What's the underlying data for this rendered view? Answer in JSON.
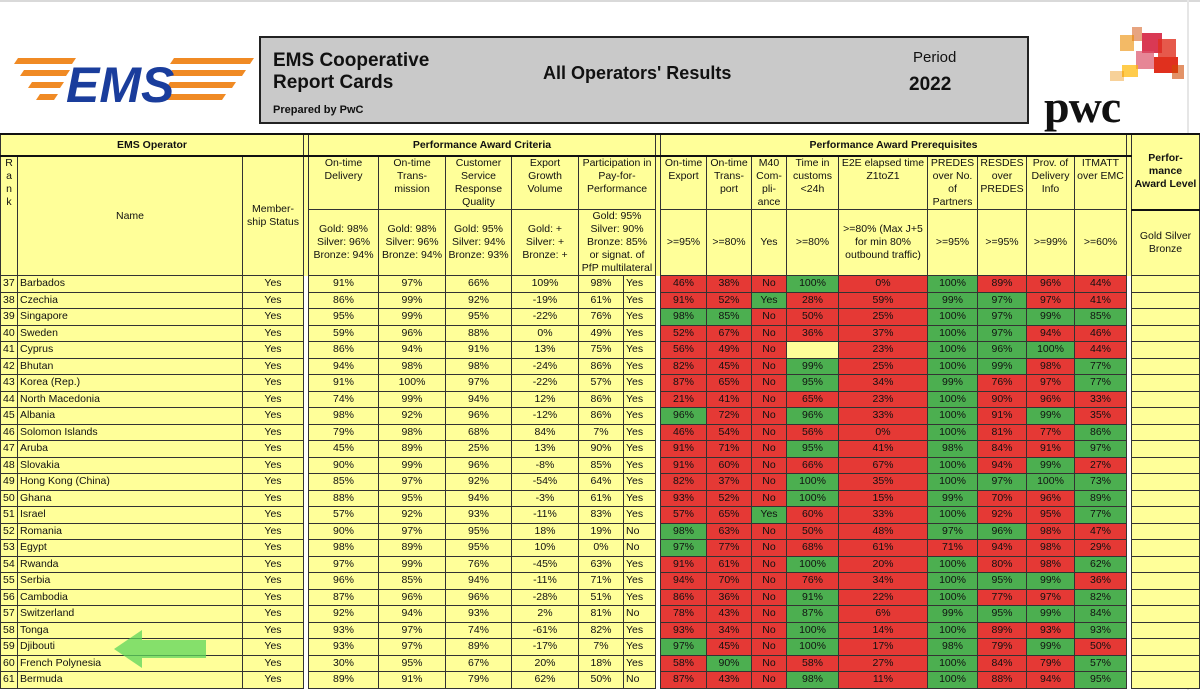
{
  "header": {
    "title": "EMS Cooperative Report Cards",
    "prepared_by": "Prepared by PwC",
    "center_title": "All Operators' Results",
    "period_label": "Period",
    "period_value": "2022",
    "ems_logo_text": "EMS",
    "pwc_logo_text": "pwc"
  },
  "sections": {
    "operator": "EMS Operator",
    "criteria": "Performance Award Criteria",
    "prerequisites": "Performance Award Prerequisites",
    "level": "Perfor-mance Award Level"
  },
  "columns": {
    "rank": "R a n k",
    "name": "Name",
    "membership": "Member-ship Status",
    "ontime_delivery": "On-time Delivery",
    "ontime_transmission": "On-time Trans-mission",
    "customer_service": "Customer Service Response Quality",
    "export_growth": "Export Growth Volume",
    "pfp": "Participation in Pay-for-Performance",
    "ontime_export": "On-time Export",
    "ontime_transport": "On-time Trans-port",
    "m40": "M40 Com-pli-ance",
    "customs": "Time in customs <24h",
    "e2e": "E2E elapsed time Z1toZ1",
    "predes": "PREDES over No. of Partners",
    "resdes": "RESDES over PREDES",
    "delivery_info": "Prov. of Delivery Info",
    "itmatt": "ITMATT over EMC"
  },
  "thresholds": {
    "ontime_delivery": "Gold: 98% Silver: 96% Bronze: 94%",
    "ontime_transmission": "Gold: 98% Silver: 96% Bronze: 94%",
    "customer_service": "Gold: 95% Silver: 94% Bronze: 93%",
    "export_growth": "Gold: + Silver: + Bronze: +",
    "pfp": "Gold: 95% Silver: 90% Bronze: 85% or signat. of PfP multilateral",
    "ontime_export": ">=95%",
    "ontime_transport": ">=80%",
    "m40": "Yes",
    "customs": ">=80%",
    "e2e": ">=80% (Max J+5 for min 80% outbound traffic)",
    "predes": ">=95%",
    "resdes": ">=95%",
    "delivery_info": ">=99%",
    "itmatt": ">=60%",
    "level": "Gold Silver Bronze"
  },
  "status_colors": {
    "pass": "#4caf50",
    "fail": "#e53935",
    "neutral": "#ffff99"
  },
  "rows": [
    {
      "rank": "37",
      "name": "Barbados",
      "member": "Yes",
      "d": "91%",
      "t": "97%",
      "c": "66%",
      "e": "109%",
      "p": "98%",
      "py": "Yes",
      "oe": [
        "46%",
        "R"
      ],
      "ot": [
        "38%",
        "R"
      ],
      "m": [
        "No",
        "R"
      ],
      "cu": [
        "100%",
        "G"
      ],
      "e2": [
        "0%",
        "R"
      ],
      "pr": [
        "100%",
        "G"
      ],
      "rs": [
        "89%",
        "R"
      ],
      "di": [
        "96%",
        "R"
      ],
      "it": [
        "44%",
        "R"
      ]
    },
    {
      "rank": "38",
      "name": "Czechia",
      "member": "Yes",
      "d": "86%",
      "t": "99%",
      "c": "92%",
      "e": "-19%",
      "p": "61%",
      "py": "Yes",
      "oe": [
        "91%",
        "R"
      ],
      "ot": [
        "52%",
        "R"
      ],
      "m": [
        "Yes",
        "G"
      ],
      "cu": [
        "28%",
        "R"
      ],
      "e2": [
        "59%",
        "R"
      ],
      "pr": [
        "99%",
        "G"
      ],
      "rs": [
        "97%",
        "G"
      ],
      "di": [
        "97%",
        "R"
      ],
      "it": [
        "41%",
        "R"
      ]
    },
    {
      "rank": "39",
      "name": "Singapore",
      "member": "Yes",
      "d": "95%",
      "t": "99%",
      "c": "95%",
      "e": "-22%",
      "p": "76%",
      "py": "Yes",
      "oe": [
        "98%",
        "G"
      ],
      "ot": [
        "85%",
        "G"
      ],
      "m": [
        "No",
        "R"
      ],
      "cu": [
        "50%",
        "R"
      ],
      "e2": [
        "25%",
        "R"
      ],
      "pr": [
        "100%",
        "G"
      ],
      "rs": [
        "97%",
        "G"
      ],
      "di": [
        "99%",
        "G"
      ],
      "it": [
        "85%",
        "G"
      ]
    },
    {
      "rank": "40",
      "name": "Sweden",
      "member": "Yes",
      "d": "59%",
      "t": "96%",
      "c": "88%",
      "e": "0%",
      "p": "49%",
      "py": "Yes",
      "oe": [
        "52%",
        "R"
      ],
      "ot": [
        "67%",
        "R"
      ],
      "m": [
        "No",
        "R"
      ],
      "cu": [
        "36%",
        "R"
      ],
      "e2": [
        "37%",
        "R"
      ],
      "pr": [
        "100%",
        "G"
      ],
      "rs": [
        "97%",
        "G"
      ],
      "di": [
        "94%",
        "R"
      ],
      "it": [
        "46%",
        "R"
      ]
    },
    {
      "rank": "41",
      "name": "Cyprus",
      "member": "Yes",
      "d": "86%",
      "t": "94%",
      "c": "91%",
      "e": "13%",
      "p": "75%",
      "py": "Yes",
      "oe": [
        "56%",
        "R"
      ],
      "ot": [
        "49%",
        "R"
      ],
      "m": [
        "No",
        "R"
      ],
      "cu": [
        "",
        ""
      ],
      "e2": [
        "23%",
        "R"
      ],
      "pr": [
        "100%",
        "G"
      ],
      "rs": [
        "96%",
        "G"
      ],
      "di": [
        "100%",
        "G"
      ],
      "it": [
        "44%",
        "R"
      ]
    },
    {
      "rank": "42",
      "name": "Bhutan",
      "member": "Yes",
      "d": "94%",
      "t": "98%",
      "c": "98%",
      "e": "-24%",
      "p": "86%",
      "py": "Yes",
      "oe": [
        "82%",
        "R"
      ],
      "ot": [
        "45%",
        "R"
      ],
      "m": [
        "No",
        "R"
      ],
      "cu": [
        "99%",
        "G"
      ],
      "e2": [
        "25%",
        "R"
      ],
      "pr": [
        "100%",
        "G"
      ],
      "rs": [
        "99%",
        "G"
      ],
      "di": [
        "98%",
        "R"
      ],
      "it": [
        "77%",
        "G"
      ]
    },
    {
      "rank": "43",
      "name": "Korea (Rep.)",
      "member": "Yes",
      "d": "91%",
      "t": "100%",
      "c": "97%",
      "e": "-22%",
      "p": "57%",
      "py": "Yes",
      "oe": [
        "87%",
        "R"
      ],
      "ot": [
        "65%",
        "R"
      ],
      "m": [
        "No",
        "R"
      ],
      "cu": [
        "95%",
        "G"
      ],
      "e2": [
        "34%",
        "R"
      ],
      "pr": [
        "99%",
        "G"
      ],
      "rs": [
        "76%",
        "R"
      ],
      "di": [
        "97%",
        "R"
      ],
      "it": [
        "77%",
        "G"
      ]
    },
    {
      "rank": "44",
      "name": "North Macedonia",
      "member": "Yes",
      "d": "74%",
      "t": "99%",
      "c": "94%",
      "e": "12%",
      "p": "86%",
      "py": "Yes",
      "oe": [
        "21%",
        "R"
      ],
      "ot": [
        "41%",
        "R"
      ],
      "m": [
        "No",
        "R"
      ],
      "cu": [
        "65%",
        "R"
      ],
      "e2": [
        "23%",
        "R"
      ],
      "pr": [
        "100%",
        "G"
      ],
      "rs": [
        "90%",
        "R"
      ],
      "di": [
        "96%",
        "R"
      ],
      "it": [
        "33%",
        "R"
      ]
    },
    {
      "rank": "45",
      "name": "Albania",
      "member": "Yes",
      "d": "98%",
      "t": "92%",
      "c": "96%",
      "e": "-12%",
      "p": "86%",
      "py": "Yes",
      "oe": [
        "96%",
        "G"
      ],
      "ot": [
        "72%",
        "R"
      ],
      "m": [
        "No",
        "R"
      ],
      "cu": [
        "96%",
        "G"
      ],
      "e2": [
        "33%",
        "R"
      ],
      "pr": [
        "100%",
        "G"
      ],
      "rs": [
        "91%",
        "R"
      ],
      "di": [
        "99%",
        "G"
      ],
      "it": [
        "35%",
        "R"
      ]
    },
    {
      "rank": "46",
      "name": "Solomon Islands",
      "member": "Yes",
      "d": "79%",
      "t": "98%",
      "c": "68%",
      "e": "84%",
      "p": "7%",
      "py": "Yes",
      "oe": [
        "46%",
        "R"
      ],
      "ot": [
        "54%",
        "R"
      ],
      "m": [
        "No",
        "R"
      ],
      "cu": [
        "56%",
        "R"
      ],
      "e2": [
        "0%",
        "R"
      ],
      "pr": [
        "100%",
        "G"
      ],
      "rs": [
        "81%",
        "R"
      ],
      "di": [
        "77%",
        "R"
      ],
      "it": [
        "86%",
        "G"
      ]
    },
    {
      "rank": "47",
      "name": "Aruba",
      "member": "Yes",
      "d": "45%",
      "t": "89%",
      "c": "25%",
      "e": "13%",
      "p": "90%",
      "py": "Yes",
      "oe": [
        "91%",
        "R"
      ],
      "ot": [
        "71%",
        "R"
      ],
      "m": [
        "No",
        "R"
      ],
      "cu": [
        "95%",
        "G"
      ],
      "e2": [
        "41%",
        "R"
      ],
      "pr": [
        "98%",
        "G"
      ],
      "rs": [
        "84%",
        "R"
      ],
      "di": [
        "91%",
        "R"
      ],
      "it": [
        "97%",
        "G"
      ]
    },
    {
      "rank": "48",
      "name": "Slovakia",
      "member": "Yes",
      "d": "90%",
      "t": "99%",
      "c": "96%",
      "e": "-8%",
      "p": "85%",
      "py": "Yes",
      "oe": [
        "91%",
        "R"
      ],
      "ot": [
        "60%",
        "R"
      ],
      "m": [
        "No",
        "R"
      ],
      "cu": [
        "66%",
        "R"
      ],
      "e2": [
        "67%",
        "R"
      ],
      "pr": [
        "100%",
        "G"
      ],
      "rs": [
        "94%",
        "R"
      ],
      "di": [
        "99%",
        "G"
      ],
      "it": [
        "27%",
        "R"
      ]
    },
    {
      "rank": "49",
      "name": "Hong Kong (China)",
      "member": "Yes",
      "d": "85%",
      "t": "97%",
      "c": "92%",
      "e": "-54%",
      "p": "64%",
      "py": "Yes",
      "oe": [
        "82%",
        "R"
      ],
      "ot": [
        "37%",
        "R"
      ],
      "m": [
        "No",
        "R"
      ],
      "cu": [
        "100%",
        "G"
      ],
      "e2": [
        "35%",
        "R"
      ],
      "pr": [
        "100%",
        "G"
      ],
      "rs": [
        "97%",
        "G"
      ],
      "di": [
        "100%",
        "G"
      ],
      "it": [
        "73%",
        "G"
      ]
    },
    {
      "rank": "50",
      "name": "Ghana",
      "member": "Yes",
      "d": "88%",
      "t": "95%",
      "c": "94%",
      "e": "-3%",
      "p": "61%",
      "py": "Yes",
      "oe": [
        "93%",
        "R"
      ],
      "ot": [
        "52%",
        "R"
      ],
      "m": [
        "No",
        "R"
      ],
      "cu": [
        "100%",
        "G"
      ],
      "e2": [
        "15%",
        "R"
      ],
      "pr": [
        "99%",
        "G"
      ],
      "rs": [
        "70%",
        "R"
      ],
      "di": [
        "96%",
        "R"
      ],
      "it": [
        "89%",
        "G"
      ]
    },
    {
      "rank": "51",
      "name": "Israel",
      "member": "Yes",
      "d": "57%",
      "t": "92%",
      "c": "93%",
      "e": "-11%",
      "p": "83%",
      "py": "Yes",
      "oe": [
        "57%",
        "R"
      ],
      "ot": [
        "65%",
        "R"
      ],
      "m": [
        "Yes",
        "G"
      ],
      "cu": [
        "60%",
        "R"
      ],
      "e2": [
        "33%",
        "R"
      ],
      "pr": [
        "100%",
        "G"
      ],
      "rs": [
        "92%",
        "R"
      ],
      "di": [
        "95%",
        "R"
      ],
      "it": [
        "77%",
        "G"
      ]
    },
    {
      "rank": "52",
      "name": "Romania",
      "member": "Yes",
      "d": "90%",
      "t": "97%",
      "c": "95%",
      "e": "18%",
      "p": "19%",
      "py": "No",
      "oe": [
        "98%",
        "G"
      ],
      "ot": [
        "63%",
        "R"
      ],
      "m": [
        "No",
        "R"
      ],
      "cu": [
        "50%",
        "R"
      ],
      "e2": [
        "48%",
        "R"
      ],
      "pr": [
        "97%",
        "G"
      ],
      "rs": [
        "96%",
        "G"
      ],
      "di": [
        "98%",
        "R"
      ],
      "it": [
        "47%",
        "R"
      ]
    },
    {
      "rank": "53",
      "name": "Egypt",
      "member": "Yes",
      "d": "98%",
      "t": "89%",
      "c": "95%",
      "e": "10%",
      "p": "0%",
      "py": "No",
      "oe": [
        "97%",
        "G"
      ],
      "ot": [
        "77%",
        "R"
      ],
      "m": [
        "No",
        "R"
      ],
      "cu": [
        "68%",
        "R"
      ],
      "e2": [
        "61%",
        "R"
      ],
      "pr": [
        "71%",
        "R"
      ],
      "rs": [
        "94%",
        "R"
      ],
      "di": [
        "98%",
        "R"
      ],
      "it": [
        "29%",
        "R"
      ]
    },
    {
      "rank": "54",
      "name": "Rwanda",
      "member": "Yes",
      "d": "97%",
      "t": "99%",
      "c": "76%",
      "e": "-45%",
      "p": "63%",
      "py": "Yes",
      "oe": [
        "91%",
        "R"
      ],
      "ot": [
        "61%",
        "R"
      ],
      "m": [
        "No",
        "R"
      ],
      "cu": [
        "100%",
        "G"
      ],
      "e2": [
        "20%",
        "R"
      ],
      "pr": [
        "100%",
        "G"
      ],
      "rs": [
        "80%",
        "R"
      ],
      "di": [
        "98%",
        "R"
      ],
      "it": [
        "62%",
        "G"
      ]
    },
    {
      "rank": "55",
      "name": "Serbia",
      "member": "Yes",
      "d": "96%",
      "t": "85%",
      "c": "94%",
      "e": "-11%",
      "p": "71%",
      "py": "Yes",
      "oe": [
        "94%",
        "R"
      ],
      "ot": [
        "70%",
        "R"
      ],
      "m": [
        "No",
        "R"
      ],
      "cu": [
        "76%",
        "R"
      ],
      "e2": [
        "34%",
        "R"
      ],
      "pr": [
        "100%",
        "G"
      ],
      "rs": [
        "95%",
        "G"
      ],
      "di": [
        "99%",
        "G"
      ],
      "it": [
        "36%",
        "R"
      ]
    },
    {
      "rank": "56",
      "name": "Cambodia",
      "member": "Yes",
      "d": "87%",
      "t": "96%",
      "c": "96%",
      "e": "-28%",
      "p": "51%",
      "py": "Yes",
      "oe": [
        "86%",
        "R"
      ],
      "ot": [
        "36%",
        "R"
      ],
      "m": [
        "No",
        "R"
      ],
      "cu": [
        "91%",
        "G"
      ],
      "e2": [
        "22%",
        "R"
      ],
      "pr": [
        "100%",
        "G"
      ],
      "rs": [
        "77%",
        "R"
      ],
      "di": [
        "97%",
        "R"
      ],
      "it": [
        "82%",
        "G"
      ]
    },
    {
      "rank": "57",
      "name": "Switzerland",
      "member": "Yes",
      "d": "92%",
      "t": "94%",
      "c": "93%",
      "e": "2%",
      "p": "81%",
      "py": "No",
      "oe": [
        "78%",
        "R"
      ],
      "ot": [
        "43%",
        "R"
      ],
      "m": [
        "No",
        "R"
      ],
      "cu": [
        "87%",
        "G"
      ],
      "e2": [
        "6%",
        "R"
      ],
      "pr": [
        "99%",
        "G"
      ],
      "rs": [
        "95%",
        "G"
      ],
      "di": [
        "99%",
        "G"
      ],
      "it": [
        "84%",
        "G"
      ]
    },
    {
      "rank": "58",
      "name": "Tonga",
      "member": "Yes",
      "d": "93%",
      "t": "97%",
      "c": "74%",
      "e": "-61%",
      "p": "82%",
      "py": "Yes",
      "oe": [
        "93%",
        "R"
      ],
      "ot": [
        "34%",
        "R"
      ],
      "m": [
        "No",
        "R"
      ],
      "cu": [
        "100%",
        "G"
      ],
      "e2": [
        "14%",
        "R"
      ],
      "pr": [
        "100%",
        "G"
      ],
      "rs": [
        "89%",
        "R"
      ],
      "di": [
        "93%",
        "R"
      ],
      "it": [
        "93%",
        "G"
      ]
    },
    {
      "rank": "59",
      "name": "Djibouti",
      "member": "Yes",
      "d": "93%",
      "t": "97%",
      "c": "89%",
      "e": "-17%",
      "p": "7%",
      "py": "Yes",
      "oe": [
        "97%",
        "G"
      ],
      "ot": [
        "45%",
        "R"
      ],
      "m": [
        "No",
        "R"
      ],
      "cu": [
        "100%",
        "G"
      ],
      "e2": [
        "17%",
        "R"
      ],
      "pr": [
        "98%",
        "G"
      ],
      "rs": [
        "79%",
        "R"
      ],
      "di": [
        "99%",
        "G"
      ],
      "it": [
        "50%",
        "R"
      ]
    },
    {
      "rank": "60",
      "name": "French Polynesia",
      "member": "Yes",
      "d": "30%",
      "t": "95%",
      "c": "67%",
      "e": "20%",
      "p": "18%",
      "py": "Yes",
      "oe": [
        "58%",
        "R"
      ],
      "ot": [
        "90%",
        "G"
      ],
      "m": [
        "No",
        "R"
      ],
      "cu": [
        "58%",
        "R"
      ],
      "e2": [
        "27%",
        "R"
      ],
      "pr": [
        "100%",
        "G"
      ],
      "rs": [
        "84%",
        "R"
      ],
      "di": [
        "79%",
        "R"
      ],
      "it": [
        "57%",
        "G"
      ]
    },
    {
      "rank": "61",
      "name": "Bermuda",
      "member": "Yes",
      "d": "89%",
      "t": "91%",
      "c": "79%",
      "e": "62%",
      "p": "50%",
      "py": "No",
      "oe": [
        "87%",
        "R"
      ],
      "ot": [
        "43%",
        "R"
      ],
      "m": [
        "No",
        "R"
      ],
      "cu": [
        "98%",
        "G"
      ],
      "e2": [
        "11%",
        "R"
      ],
      "pr": [
        "100%",
        "G"
      ],
      "rs": [
        "88%",
        "R"
      ],
      "di": [
        "94%",
        "R"
      ],
      "it": [
        "95%",
        "G"
      ]
    }
  ]
}
